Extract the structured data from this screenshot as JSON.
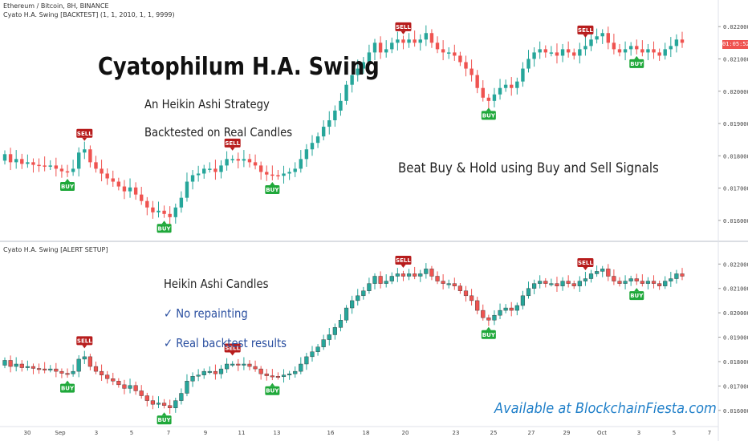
{
  "header": {
    "top_title": "Ethereum / Bitcoin, 8H, BINANCE",
    "top_indicator": "Cyato H.A. Swing [BACKTEST] (1, 1, 2010, 1, 1, 9999)",
    "bottom_indicator": "Cyato H.A. Swing [ALERT SETUP]"
  },
  "overlay": {
    "title": "Cyatophilum H.A. Swing",
    "subtitle1": "An Heikin Ashi Strategy",
    "subtitle2": "Backtested on Real Candles",
    "beat": "Beat Buy & Hold using Buy and Sell Signals",
    "ha": "Heikin Ashi Candles",
    "check1": "✓ No repainting",
    "check2": "✓ Real backtest results",
    "brand": "Available at BlockchainFiesta.com"
  },
  "price_tag": "01:05:52",
  "signal_labels": {
    "buy": "BUY",
    "sell": "SELL"
  },
  "colors": {
    "up": "#26a69a",
    "down": "#ef5350",
    "buy": "#1fa83a",
    "sell": "#b71c1c"
  },
  "chart_data": {
    "type": "candlestick",
    "y_axis_top": [
      "0.022000",
      "0.021000",
      "0.020000",
      "0.019000",
      "0.018000",
      "0.017000",
      "0.016000"
    ],
    "y_axis_bottom": [
      "0.022000",
      "0.021000",
      "0.020000",
      "0.019000",
      "0.018000",
      "0.017000",
      "0.016000"
    ],
    "ylim": [
      0.0155,
      0.0227
    ],
    "x_ticks": [
      "30",
      "Sep",
      "3",
      "5",
      "7",
      "9",
      "11",
      "13",
      "16",
      "18",
      "20",
      "23",
      "25",
      "27",
      "29",
      "Oct",
      "3",
      "5",
      "7"
    ],
    "closes": [
      0.01805,
      0.0178,
      0.0179,
      0.01775,
      0.0178,
      0.01772,
      0.0177,
      0.01768,
      0.0177,
      0.0176,
      0.01752,
      0.0175,
      0.0176,
      0.0181,
      0.0182,
      0.0178,
      0.0176,
      0.01745,
      0.0173,
      0.0172,
      0.01705,
      0.0169,
      0.01702,
      0.0168,
      0.0166,
      0.0164,
      0.01625,
      0.0163,
      0.0162,
      0.0161,
      0.0164,
      0.0167,
      0.0172,
      0.0174,
      0.01745,
      0.0176,
      0.0176,
      0.0175,
      0.0177,
      0.0179,
      0.0179,
      0.01785,
      0.0179,
      0.0178,
      0.0177,
      0.0175,
      0.01742,
      0.0174,
      0.01738,
      0.01745,
      0.0175,
      0.0176,
      0.0179,
      0.0182,
      0.0184,
      0.0186,
      0.0189,
      0.0191,
      0.0194,
      0.0197,
      0.0202,
      0.0205,
      0.0207,
      0.0209,
      0.0212,
      0.0215,
      0.0212,
      0.0213,
      0.0215,
      0.0216,
      0.0215,
      0.0216,
      0.0215,
      0.0216,
      0.0218,
      0.0215,
      0.0213,
      0.0212,
      0.0212,
      0.0211,
      0.0209,
      0.0207,
      0.0205,
      0.0201,
      0.0198,
      0.0197,
      0.0199,
      0.0201,
      0.0202,
      0.0201,
      0.0203,
      0.0207,
      0.021,
      0.0212,
      0.0213,
      0.0212,
      0.0212,
      0.0211,
      0.0213,
      0.0212,
      0.0211,
      0.0213,
      0.0214,
      0.0216,
      0.0217,
      0.0218,
      0.0215,
      0.0213,
      0.0212,
      0.0213,
      0.0214,
      0.0213,
      0.0212,
      0.0213,
      0.0212,
      0.0211,
      0.0213,
      0.0214,
      0.0216,
      0.0215
    ],
    "signals": [
      {
        "type": "sell",
        "index": 14
      },
      {
        "type": "buy",
        "index": 11
      },
      {
        "type": "buy",
        "index": 28
      },
      {
        "type": "sell",
        "index": 40
      },
      {
        "type": "buy",
        "index": 47
      },
      {
        "type": "sell",
        "index": 70
      },
      {
        "type": "buy",
        "index": 85
      },
      {
        "type": "sell",
        "index": 102
      },
      {
        "type": "buy",
        "index": 111
      }
    ]
  }
}
